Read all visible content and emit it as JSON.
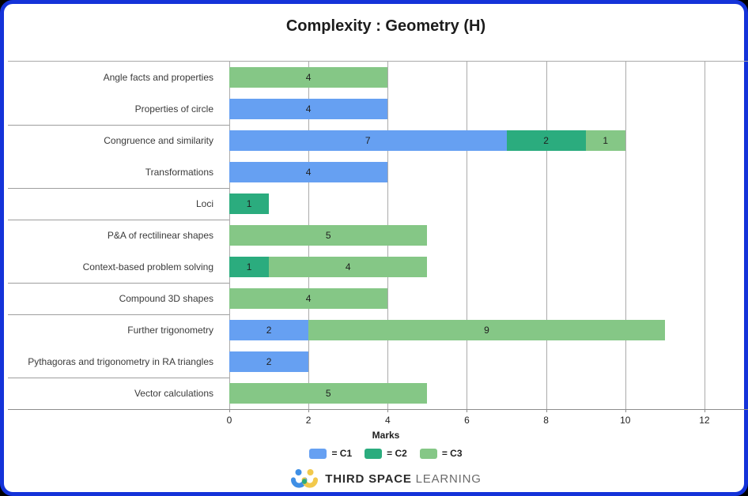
{
  "title": "Complexity : Geometry (H)",
  "colors": {
    "frame_blue": "#1433D9",
    "c1_blue": "#66A0F2",
    "c2_teal": "#2BAC7E",
    "c3_green": "#85C786",
    "gridline_gray": "#ababab",
    "logo_blue": "#3F8FE5",
    "logo_yellow": "#F2C94C",
    "logo_overlap_teal": "#2FAA7B"
  },
  "chart_data": {
    "type": "bar",
    "orientation": "horizontal",
    "stacked": true,
    "title": "Complexity : Geometry (H)",
    "xlabel": "Marks",
    "ylabel": "",
    "grid": true,
    "xticks": [
      0,
      2,
      4,
      6,
      8,
      10,
      12
    ],
    "xlim": [
      0,
      13.1
    ],
    "legend_position": "bottom",
    "series": [
      {
        "name": "C1",
        "color": "#66A0F2"
      },
      {
        "name": "C2",
        "color": "#2BAC7E"
      },
      {
        "name": "C3",
        "color": "#85C786"
      }
    ],
    "rows": [
      {
        "label": "Angle facts and properties",
        "segments": [
          {
            "series": "C3",
            "value": 4
          }
        ]
      },
      {
        "label": "Properties of circle",
        "segments": [
          {
            "series": "C1",
            "value": 4
          }
        ]
      },
      {
        "label": "Congruence and similarity",
        "segments": [
          {
            "series": "C1",
            "value": 7
          },
          {
            "series": "C2",
            "value": 2
          },
          {
            "series": "C3",
            "value": 1
          }
        ]
      },
      {
        "label": "Transformations",
        "segments": [
          {
            "series": "C1",
            "value": 4
          }
        ]
      },
      {
        "label": "Loci",
        "segments": [
          {
            "series": "C2",
            "value": 1
          }
        ]
      },
      {
        "label": "P&A of rectilinear shapes",
        "segments": [
          {
            "series": "C3",
            "value": 5
          }
        ]
      },
      {
        "label": "Context-based problem solving",
        "segments": [
          {
            "series": "C2",
            "value": 1
          },
          {
            "series": "C3",
            "value": 4
          }
        ]
      },
      {
        "label": "Compound 3D shapes",
        "segments": [
          {
            "series": "C3",
            "value": 4
          }
        ]
      },
      {
        "label": "Further trigonometry",
        "segments": [
          {
            "series": "C1",
            "value": 2
          },
          {
            "series": "C3",
            "value": 9
          }
        ]
      },
      {
        "label": "Pythagoras and trigonometry in RA triangles",
        "segments": [
          {
            "series": "C1",
            "value": 2
          }
        ]
      },
      {
        "label": "Vector calculations",
        "segments": [
          {
            "series": "C3",
            "value": 5
          }
        ]
      }
    ],
    "row_group_separators_after_rows": [
      2,
      4,
      5,
      7,
      8,
      10
    ]
  },
  "legend": {
    "items": [
      {
        "label": "= C1",
        "color": "#66A0F2"
      },
      {
        "label": "= C2",
        "color": "#2BAC7E"
      },
      {
        "label": "= C3",
        "color": "#85C786"
      }
    ]
  },
  "footer": {
    "brand_bold": "THIRD SPACE",
    "brand_light": "LEARNING"
  }
}
